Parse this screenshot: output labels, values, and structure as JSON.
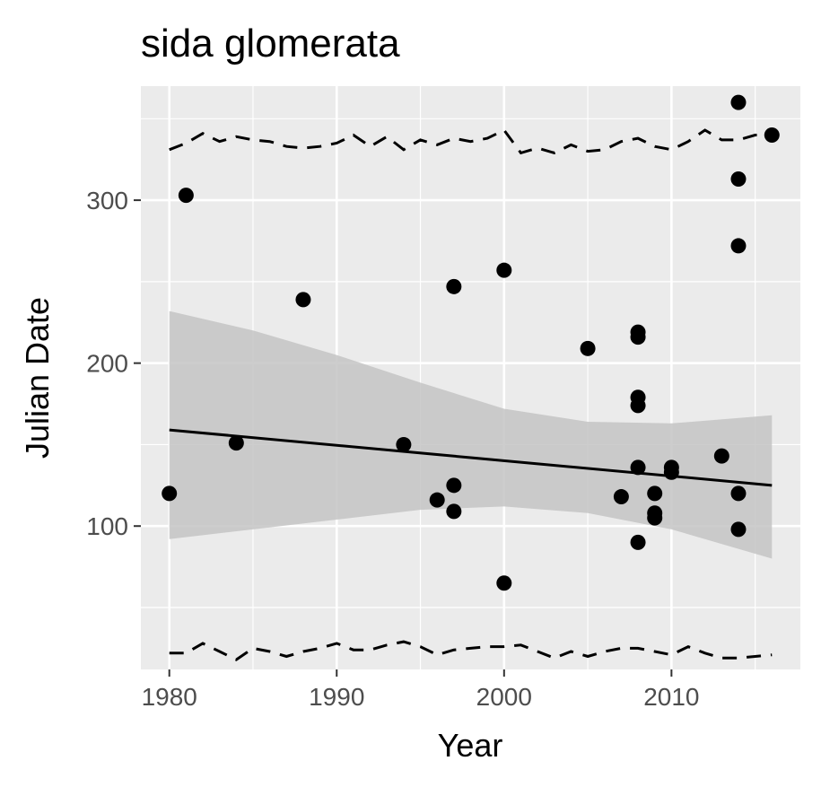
{
  "chart_data": {
    "type": "scatter",
    "title": "sida glomerata",
    "xlabel": "Year",
    "ylabel": "Julian Date",
    "xlim": [
      1978.3,
      2017.7
    ],
    "ylim": [
      12,
      370
    ],
    "x_ticks": [
      1980,
      1990,
      2000,
      2010
    ],
    "x_minor_ticks": [
      1985,
      1995,
      2005,
      2015
    ],
    "y_ticks": [
      100,
      200,
      300
    ],
    "y_minor_ticks": [
      50,
      150,
      250,
      350
    ],
    "grid": true,
    "legend": "none",
    "colors": {
      "panel": "#ebebeb",
      "grid": "#ffffff",
      "points": "#000000",
      "band": "#c4c4c4",
      "trend": "#000000",
      "bounds": "#000000"
    },
    "points": [
      {
        "x": 1980,
        "y": 120
      },
      {
        "x": 1981,
        "y": 303
      },
      {
        "x": 1984,
        "y": 151
      },
      {
        "x": 1988,
        "y": 239
      },
      {
        "x": 1994,
        "y": 150
      },
      {
        "x": 1996,
        "y": 116
      },
      {
        "x": 1997,
        "y": 247
      },
      {
        "x": 1997,
        "y": 125
      },
      {
        "x": 1997,
        "y": 109
      },
      {
        "x": 2000,
        "y": 257
      },
      {
        "x": 2000,
        "y": 65
      },
      {
        "x": 2005,
        "y": 209
      },
      {
        "x": 2007,
        "y": 118
      },
      {
        "x": 2008,
        "y": 219
      },
      {
        "x": 2008,
        "y": 216
      },
      {
        "x": 2008,
        "y": 179
      },
      {
        "x": 2008,
        "y": 174
      },
      {
        "x": 2008,
        "y": 136
      },
      {
        "x": 2008,
        "y": 90
      },
      {
        "x": 2009,
        "y": 120
      },
      {
        "x": 2009,
        "y": 108
      },
      {
        "x": 2009,
        "y": 105
      },
      {
        "x": 2010,
        "y": 136
      },
      {
        "x": 2010,
        "y": 133
      },
      {
        "x": 2013,
        "y": 143
      },
      {
        "x": 2014,
        "y": 360
      },
      {
        "x": 2014,
        "y": 313
      },
      {
        "x": 2014,
        "y": 272
      },
      {
        "x": 2014,
        "y": 120
      },
      {
        "x": 2014,
        "y": 98
      },
      {
        "x": 2016,
        "y": 340
      }
    ],
    "trend": {
      "x": [
        1980,
        2016
      ],
      "y": [
        159,
        125
      ]
    },
    "confidence_band": {
      "x": [
        1980,
        1985,
        1990,
        1995,
        2000,
        2005,
        2010,
        2016
      ],
      "upper": [
        232,
        220,
        205,
        188,
        172,
        164,
        163,
        168
      ],
      "lower": [
        92,
        98,
        104,
        110,
        112,
        108,
        98,
        80
      ]
    },
    "upper_bound": {
      "x": [
        1980,
        1981,
        1982,
        1983,
        1984,
        1985,
        1986,
        1987,
        1988,
        1989,
        1990,
        1991,
        1992,
        1993,
        1994,
        1995,
        1996,
        1997,
        1998,
        1999,
        2000,
        2001,
        2002,
        2003,
        2004,
        2005,
        2006,
        2007,
        2008,
        2009,
        2010,
        2011,
        2012,
        2013,
        2014,
        2015,
        2016
      ],
      "y": [
        331,
        335,
        341,
        336,
        339,
        337,
        336,
        333,
        332,
        333,
        335,
        340,
        333,
        339,
        331,
        337,
        334,
        338,
        336,
        338,
        343,
        329,
        332,
        329,
        334,
        330,
        331,
        336,
        338,
        333,
        331,
        336,
        343,
        337,
        337,
        340,
        340
      ]
    },
    "lower_bound": {
      "x": [
        1980,
        1981,
        1982,
        1983,
        1984,
        1985,
        1986,
        1987,
        1988,
        1989,
        1990,
        1991,
        1992,
        1993,
        1994,
        1995,
        1996,
        1997,
        1998,
        1999,
        2000,
        2001,
        2002,
        2003,
        2004,
        2005,
        2006,
        2007,
        2008,
        2009,
        2010,
        2011,
        2012,
        2013,
        2014,
        2015,
        2016
      ],
      "y": [
        22,
        22,
        28,
        23,
        18,
        25,
        23,
        20,
        23,
        25,
        28,
        24,
        24,
        27,
        29,
        26,
        21,
        24,
        25,
        26,
        26,
        27,
        23,
        19,
        23,
        20,
        23,
        25,
        25,
        23,
        21,
        26,
        22,
        19,
        19,
        20,
        21
      ]
    }
  }
}
